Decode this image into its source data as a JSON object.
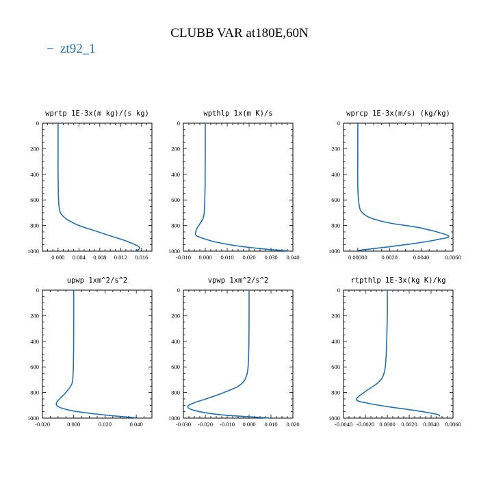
{
  "figure": {
    "title": "CLUBB VAR at180E,60N",
    "legend": {
      "label": "zt92_1",
      "marker": "−",
      "color": "#1f6fb4"
    }
  },
  "chart_data": [
    {
      "type": "line",
      "title": "wprtp  1E-3x(m kg)/(s kg)",
      "xlabel": "",
      "ylabel": "",
      "xlim": [
        -0.003,
        0.018
      ],
      "ylim": [
        1000,
        0
      ],
      "xticks": [
        0.0,
        0.004,
        0.008,
        0.012,
        0.016
      ],
      "xtick_labels": [
        "0.000",
        "0.004",
        "0.008",
        "0.012",
        "0.016"
      ],
      "yticks": [
        0,
        200,
        400,
        600,
        800,
        1000
      ],
      "ytick_labels": [
        "0",
        "200",
        "400",
        "600",
        "800",
        "1000"
      ],
      "series": [
        {
          "name": "zt92_1",
          "x": [
            0.0,
            0.0,
            0.0,
            0.0001,
            0.0003,
            0.0008,
            0.002,
            0.004,
            0.007,
            0.01,
            0.013,
            0.0148,
            0.0156,
            0.0155,
            0.015
          ],
          "y": [
            0,
            200,
            400,
            600,
            680,
            720,
            760,
            800,
            840,
            880,
            920,
            950,
            970,
            985,
            995
          ]
        }
      ]
    },
    {
      "type": "line",
      "title": "wpthlp  1x(m K)/s",
      "xlabel": "",
      "ylabel": "",
      "xlim": [
        -0.01,
        0.04
      ],
      "ylim": [
        1000,
        0
      ],
      "xticks": [
        -0.01,
        0.0,
        0.01,
        0.02,
        0.03,
        0.04
      ],
      "xtick_labels": [
        "-0.010",
        "0.000",
        "0.010",
        "0.020",
        "0.030",
        "0.040"
      ],
      "yticks": [
        0,
        200,
        400,
        600,
        800,
        1000
      ],
      "ytick_labels": [
        "0",
        "200",
        "400",
        "600",
        "800",
        "1000"
      ],
      "series": [
        {
          "name": "zt92_1",
          "x": [
            0.0,
            0.0,
            -0.0001,
            -0.0005,
            -0.0015,
            -0.003,
            -0.004,
            -0.0045,
            -0.004,
            -0.001,
            0.005,
            0.015,
            0.028,
            0.038
          ],
          "y": [
            0,
            200,
            500,
            700,
            760,
            800,
            830,
            860,
            880,
            900,
            930,
            960,
            985,
            998
          ]
        }
      ]
    },
    {
      "type": "line",
      "title": "wprcp  1E-3x(m/s) (kg/kg)",
      "xlabel": "",
      "ylabel": "",
      "xlim": [
        -0.0009,
        0.006
      ],
      "ylim": [
        1000,
        0
      ],
      "xticks": [
        0.0,
        0.002,
        0.004,
        0.006
      ],
      "xtick_labels": [
        "0.00000",
        "0.0020",
        "0.0040",
        "0.0060"
      ],
      "yticks": [
        0,
        200,
        400,
        600,
        800,
        1000
      ],
      "ytick_labels": [
        "0",
        "200",
        "400",
        "600",
        "800",
        "1000"
      ],
      "series": [
        {
          "name": "zt92_1",
          "x": [
            0.0,
            0.0,
            0.0,
            0.0001,
            0.0003,
            0.0008,
            0.002,
            0.004,
            0.0057,
            0.005,
            0.003,
            0.001,
            0.0
          ],
          "y": [
            0,
            200,
            500,
            650,
            700,
            740,
            780,
            820,
            880,
            910,
            950,
            980,
            995
          ]
        }
      ]
    },
    {
      "type": "line",
      "title": "upwp  1xm^2/s^2",
      "xlabel": "",
      "ylabel": "",
      "xlim": [
        -0.02,
        0.05
      ],
      "ylim": [
        1000,
        0
      ],
      "xticks": [
        -0.02,
        0.0,
        0.02,
        0.04
      ],
      "xtick_labels": [
        "-0.020",
        "0.000",
        "0.020",
        "0.040"
      ],
      "yticks": [
        0,
        200,
        400,
        600,
        800,
        1000
      ],
      "ytick_labels": [
        "0",
        "200",
        "400",
        "600",
        "800",
        "1000"
      ],
      "series": [
        {
          "name": "zt92_1",
          "x": [
            0.0,
            0.0,
            -0.0001,
            -0.0005,
            -0.0015,
            -0.005,
            -0.009,
            -0.011,
            -0.01,
            -0.002,
            0.012,
            0.028,
            0.04
          ],
          "y": [
            0,
            200,
            500,
            680,
            740,
            800,
            850,
            880,
            910,
            940,
            965,
            985,
            998
          ]
        }
      ]
    },
    {
      "type": "line",
      "title": "vpwp  1xm^2/s^2",
      "xlabel": "",
      "ylabel": "",
      "xlim": [
        -0.03,
        0.02
      ],
      "ylim": [
        1000,
        0
      ],
      "xticks": [
        -0.03,
        -0.02,
        -0.01,
        0.0,
        0.01,
        0.02
      ],
      "xtick_labels": [
        "-0.030",
        "-0.020",
        "-0.010",
        "0.000",
        "0.010",
        "0.020"
      ],
      "yticks": [
        0,
        200,
        400,
        600,
        800,
        1000
      ],
      "ytick_labels": [
        "0",
        "200",
        "400",
        "600",
        "800",
        "1000"
      ],
      "series": [
        {
          "name": "zt92_1",
          "x": [
            0.0,
            0.0,
            -0.0002,
            -0.001,
            -0.004,
            -0.01,
            -0.018,
            -0.025,
            -0.028,
            -0.025,
            -0.015,
            0.0,
            0.009
          ],
          "y": [
            0,
            200,
            500,
            660,
            740,
            790,
            840,
            880,
            910,
            940,
            970,
            990,
            998
          ]
        }
      ]
    },
    {
      "type": "line",
      "title": "rtpthlp  1E-3x(kg K)/kg",
      "xlabel": "",
      "ylabel": "",
      "xlim": [
        -0.004,
        0.006
      ],
      "ylim": [
        1000,
        0
      ],
      "xticks": [
        -0.004,
        -0.002,
        0.0,
        0.002,
        0.004,
        0.006
      ],
      "xtick_labels": [
        "-0.0040",
        "-0.0020",
        "0.0000",
        "0.0020",
        "0.0040",
        "0.0060"
      ],
      "yticks": [
        0,
        200,
        400,
        600,
        800,
        1000
      ],
      "ytick_labels": [
        "0",
        "200",
        "400",
        "600",
        "800",
        "1000"
      ],
      "series": [
        {
          "name": "zt92_1",
          "x": [
            0.0,
            0.0,
            -0.0001,
            -0.0003,
            -0.0008,
            -0.0018,
            -0.0026,
            -0.0028,
            -0.002,
            0.0,
            0.0025,
            0.0045,
            0.0048
          ],
          "y": [
            0,
            200,
            500,
            650,
            720,
            780,
            830,
            860,
            880,
            910,
            940,
            970,
            985
          ]
        }
      ]
    }
  ]
}
